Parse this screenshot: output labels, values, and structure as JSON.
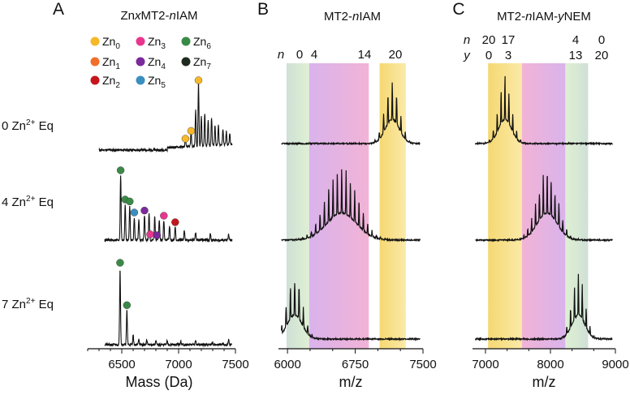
{
  "panel_letters": [
    "A",
    "B",
    "C"
  ],
  "chart_data": [
    {
      "type": "line",
      "panel": "A",
      "title": "ZnxMT2-nIAM",
      "title_parts": [
        {
          "t": "Zn",
          "it": false
        },
        {
          "t": "x",
          "it": true
        },
        {
          "t": "MT2-",
          "it": false
        },
        {
          "t": "n",
          "it": true
        },
        {
          "t": "IAM",
          "it": false
        }
      ],
      "xlabel": "Mass (Da)",
      "xlim": [
        6200,
        7500
      ],
      "xticks": [
        6500,
        7000,
        7500
      ],
      "row_labels": [
        "0 Zn2+ Eq",
        "4 Zn2+ Eq",
        "7 Zn2+ Eq"
      ],
      "legend": [
        {
          "label": "Zn0",
          "base": "Zn",
          "sub": "0",
          "color": "#f7b82a"
        },
        {
          "label": "Zn1",
          "base": "Zn",
          "sub": "1",
          "color": "#f26f2a"
        },
        {
          "label": "Zn2",
          "base": "Zn",
          "sub": "2",
          "color": "#c4161c"
        },
        {
          "label": "Zn3",
          "base": "Zn",
          "sub": "3",
          "color": "#e8368f"
        },
        {
          "label": "Zn4",
          "base": "Zn",
          "sub": "4",
          "color": "#7b2a9c"
        },
        {
          "label": "Zn5",
          "base": "Zn",
          "sub": "5",
          "color": "#3b8fbf"
        },
        {
          "label": "Zn6",
          "base": "Zn",
          "sub": "6",
          "color": "#3a8a47"
        },
        {
          "label": "Zn7",
          "base": "Zn",
          "sub": "7",
          "color": "#1f2a1f"
        }
      ],
      "series": [
        {
          "name": "0 Zn2+ Eq",
          "peaks": [
            [
              7060,
              0.1
            ],
            [
              7110,
              0.22
            ],
            [
              7150,
              0.55
            ],
            [
              7175,
              1.0
            ],
            [
              7200,
              0.45
            ],
            [
              7230,
              0.5
            ],
            [
              7260,
              0.38
            ],
            [
              7290,
              0.42
            ],
            [
              7320,
              0.3
            ],
            [
              7350,
              0.3
            ],
            [
              7390,
              0.25
            ],
            [
              7420,
              0.2
            ],
            [
              7450,
              0.17
            ],
            [
              7480,
              0.12
            ]
          ],
          "markers": [
            {
              "x": 7060,
              "color": "#f7b82a"
            },
            {
              "x": 7110,
              "color": "#f7b82a"
            },
            {
              "x": 7175,
              "color": "#f7b82a"
            }
          ]
        },
        {
          "name": "4 Zn2+ Eq",
          "peaks": [
            [
              6490,
              1.0
            ],
            [
              6530,
              0.55
            ],
            [
              6570,
              0.52
            ],
            [
              6610,
              0.35
            ],
            [
              6650,
              0.32
            ],
            [
              6700,
              0.38
            ],
            [
              6740,
              0.4
            ],
            [
              6790,
              0.35
            ],
            [
              6830,
              0.3
            ],
            [
              6870,
              0.3
            ],
            [
              6920,
              0.22
            ],
            [
              6970,
              0.2
            ],
            [
              7050,
              0.15
            ],
            [
              7150,
              0.12
            ],
            [
              7280,
              0.1
            ],
            [
              7440,
              0.08
            ]
          ],
          "markers": [
            {
              "x": 6490,
              "color": "#3a8a47"
            },
            {
              "x": 6530,
              "color": "#3a8a47"
            },
            {
              "x": 6570,
              "color": "#3a8a47"
            },
            {
              "x": 6610,
              "color": "#3b8fbf"
            },
            {
              "x": 6700,
              "color": "#7b2a9c"
            },
            {
              "x": 6750,
              "color": "#e8368f"
            },
            {
              "x": 6810,
              "color": "#7b2a9c"
            },
            {
              "x": 6870,
              "color": "#e8368f"
            },
            {
              "x": 6970,
              "color": "#c4161c"
            }
          ]
        },
        {
          "name": "7 Zn2+ Eq",
          "peaks": [
            [
              6485,
              1.0
            ],
            [
              6545,
              0.45
            ],
            [
              6600,
              0.12
            ],
            [
              6650,
              0.08
            ],
            [
              6720,
              0.06
            ],
            [
              6800,
              0.05
            ],
            [
              6900,
              0.05
            ],
            [
              7020,
              0.04
            ],
            [
              7150,
              0.05
            ],
            [
              7300,
              0.04
            ],
            [
              7440,
              0.06
            ]
          ],
          "markers": [
            {
              "x": 6485,
              "color": "#3a8a47"
            },
            {
              "x": 6545,
              "color": "#3a8a47"
            }
          ]
        }
      ]
    },
    {
      "type": "line",
      "panel": "B",
      "title": "MT2-nIAM",
      "title_parts": [
        {
          "t": "MT2-",
          "it": false
        },
        {
          "t": "n",
          "it": true
        },
        {
          "t": "IAM",
          "it": false
        }
      ],
      "xlabel": "m/z",
      "xlim": [
        5900,
        7500
      ],
      "xticks": [
        6000,
        6750,
        7500
      ],
      "n_label": "n",
      "n_values": [
        "0",
        "4",
        "14",
        "20"
      ],
      "bands": [
        {
          "from": 5990,
          "to": 6240,
          "colors": [
            "#cfe0d6",
            "#dff0d3"
          ]
        },
        {
          "from": 6240,
          "to": 6900,
          "colors": [
            "#d9b3ec",
            "#f2b3d6"
          ]
        },
        {
          "from": 7020,
          "to": 7310,
          "colors": [
            "#f5d872",
            "#fbeaa8"
          ]
        }
      ],
      "series": [
        {
          "name": "0 Zn2+ Eq",
          "center": 7160,
          "width": 140,
          "peak_spacing": 48,
          "amp": 1.0
        },
        {
          "name": "4 Zn2+ Eq",
          "center": 6600,
          "width": 300,
          "peak_spacing": 48,
          "amp": 1.0
        },
        {
          "name": "7 Zn2+ Eq",
          "center": 6080,
          "width": 150,
          "peak_spacing": 48,
          "amp": 1.0
        }
      ]
    },
    {
      "type": "line",
      "panel": "C",
      "title": "MT2-nIAM-yNEM",
      "title_parts": [
        {
          "t": "MT2-",
          "it": false
        },
        {
          "t": "n",
          "it": true
        },
        {
          "t": "IAM-",
          "it": false
        },
        {
          "t": "y",
          "it": true
        },
        {
          "t": "NEM",
          "it": false
        }
      ],
      "xlabel": "m/z",
      "xlim": [
        6800,
        9000
      ],
      "xticks": [
        7000,
        8000,
        9000
      ],
      "n_label": "n",
      "y_label": "y",
      "n_values": [
        "20",
        "17",
        "4",
        "0"
      ],
      "y_values": [
        "0",
        "3",
        "13",
        "20"
      ],
      "bands": [
        {
          "from": 7040,
          "to": 7560,
          "colors": [
            "#f5d872",
            "#fbeaa8"
          ]
        },
        {
          "from": 7560,
          "to": 8230,
          "colors": [
            "#f2b3d6",
            "#d9b3ec"
          ]
        },
        {
          "from": 8230,
          "to": 8580,
          "colors": [
            "#dff0d3",
            "#cfe0d6"
          ]
        }
      ],
      "series": [
        {
          "name": "0 Zn2+ Eq",
          "center": 7300,
          "width": 180,
          "peak_spacing": 60,
          "amp": 1.0
        },
        {
          "name": "4 Zn2+ Eq",
          "center": 7950,
          "width": 280,
          "peak_spacing": 60,
          "amp": 1.0
        },
        {
          "name": "7 Zn2+ Eq",
          "center": 8430,
          "width": 180,
          "peak_spacing": 60,
          "amp": 1.0
        }
      ]
    }
  ]
}
